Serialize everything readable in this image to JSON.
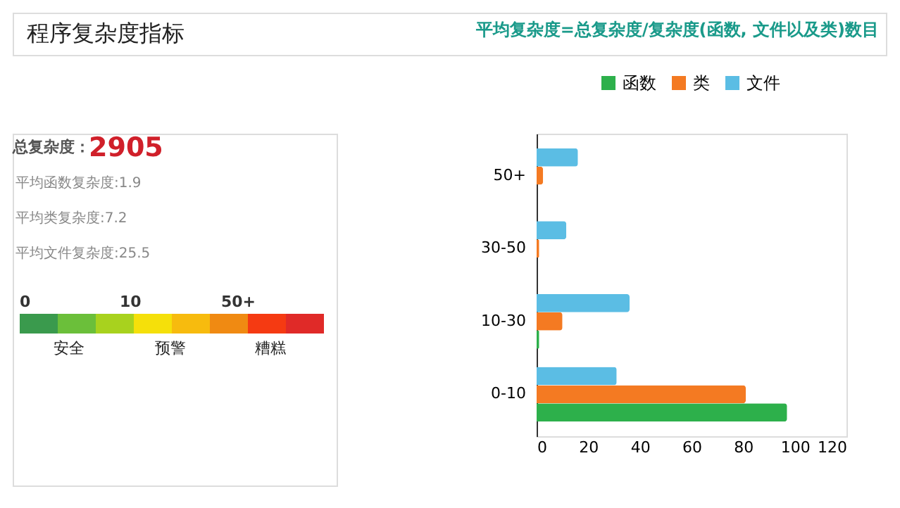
{
  "chart_data": [
    {
      "type": "other",
      "title": "程序复杂度指标",
      "subtitle": "平均复杂度=总复杂度/复杂度(函数, 文件以及类)数目",
      "annotations": [
        "总复杂度：",
        "2905",
        "平均函数复杂度:1.9",
        "平均类复杂度:7.2",
        "平均文件复杂度:25.5",
        "0",
        "10",
        "50+",
        "安全",
        "预警",
        "糟糕"
      ],
      "colors": [
        "#3a9a4d",
        "#6bbf3a",
        "#a8d21e",
        "#f5e00a",
        "#f7bb0e",
        "#f08a12",
        "#f53a12",
        "#e02a28"
      ]
    },
    {
      "type": "bar",
      "orientation": "horizontal",
      "categories": [
        "50+",
        "30-50",
        "10-30",
        "0-10"
      ],
      "series": [
        {
          "name": "函数",
          "color": "#2db04b",
          "values": [
            0,
            0,
            1,
            97
          ]
        },
        {
          "name": "类",
          "color": "#f47a22",
          "values": [
            2.5,
            1,
            10,
            81
          ]
        },
        {
          "name": "文件",
          "color": "#5bbde4",
          "values": [
            16,
            11.5,
            36,
            31
          ]
        }
      ],
      "xlim": [
        0,
        120
      ],
      "xticks": [
        0,
        20,
        40,
        60,
        80,
        100,
        120
      ],
      "grid": false,
      "legend": "top"
    }
  ]
}
